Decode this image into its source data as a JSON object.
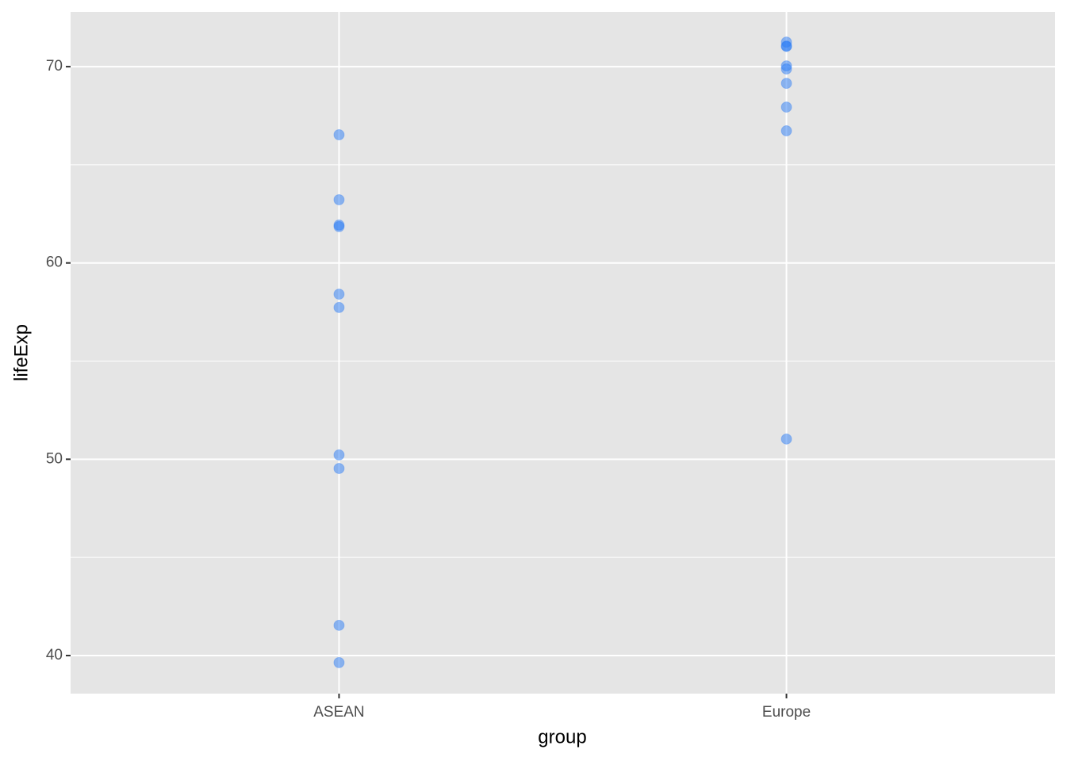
{
  "chart_data": {
    "type": "strip",
    "x_label": "group",
    "y_label": "lifeExp",
    "categories": [
      "ASEAN",
      "Europe"
    ],
    "values": [
      [
        66.53,
        63.22,
        61.93,
        61.85,
        58.41,
        57.73,
        50.22,
        49.53,
        41.54,
        39.64
      ],
      [
        71.25,
        71.05,
        71.03,
        70.04,
        69.88,
        69.15,
        67.94,
        66.73,
        51.03
      ]
    ],
    "color": "#2a7bf5",
    "ylim": [
      38.06,
      72.79
    ],
    "yticks": [
      40,
      50,
      60,
      70
    ],
    "yminor": [
      45,
      55,
      65
    ],
    "grid": true
  }
}
